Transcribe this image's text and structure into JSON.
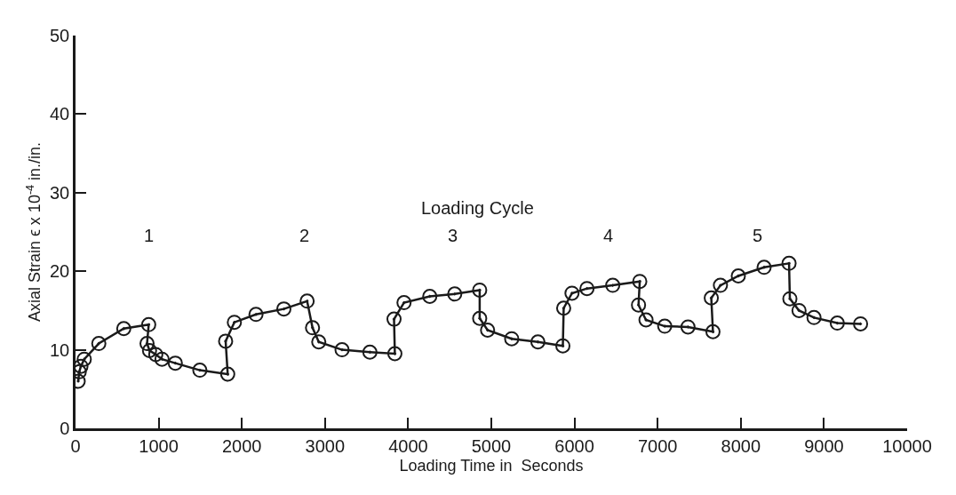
{
  "chart_data": {
    "type": "line",
    "xlabel": "Loading Time in  Seconds",
    "ylabel": "Axial Strain ϵ x 10$^{-4}$ in./in.",
    "x": [
      32,
      45,
      65,
      105,
      280,
      580,
      880,
      860,
      890,
      965,
      1040,
      1200,
      1495,
      1830,
      1805,
      1910,
      2170,
      2505,
      2785,
      2850,
      2925,
      3205,
      3540,
      3840,
      3830,
      3950,
      4260,
      4560,
      4860,
      4860,
      4955,
      5245,
      5560,
      5860,
      5870,
      5970,
      6150,
      6460,
      6785,
      6770,
      6860,
      7085,
      7365,
      7665,
      7645,
      7755,
      7970,
      8280,
      8580,
      8590,
      8700,
      8880,
      9160,
      9440
    ],
    "series": [
      {
        "color": "#1a1a1a",
        "values": [
          6.0,
          7.2,
          7.9,
          8.8,
          10.8,
          12.7,
          13.2,
          10.8,
          9.9,
          9.4,
          8.8,
          8.3,
          7.4,
          6.9,
          11.1,
          13.5,
          14.5,
          15.2,
          16.2,
          12.8,
          11.0,
          10.0,
          9.7,
          9.5,
          13.9,
          16.0,
          16.8,
          17.1,
          17.6,
          14.0,
          12.5,
          11.4,
          11.0,
          10.5,
          15.3,
          17.2,
          17.8,
          18.2,
          18.7,
          15.7,
          13.8,
          13.0,
          12.9,
          12.3,
          16.6,
          18.2,
          19.4,
          20.5,
          21.0,
          16.5,
          15.0,
          14.1,
          13.4,
          13.3
        ]
      }
    ],
    "xlim": [
      0,
      10000
    ],
    "xticks": [
      0,
      1000,
      2000,
      3000,
      4000,
      5000,
      6000,
      7000,
      8000,
      9000,
      10000
    ],
    "ylim": [
      0,
      50
    ],
    "yticks": [
      0,
      10,
      20,
      30,
      40,
      50
    ],
    "annotations": [
      "Loading Cycle",
      "1",
      "2",
      "3",
      "4",
      "5"
    ],
    "grid": false,
    "marker": "circle",
    "line_style": "solid"
  }
}
